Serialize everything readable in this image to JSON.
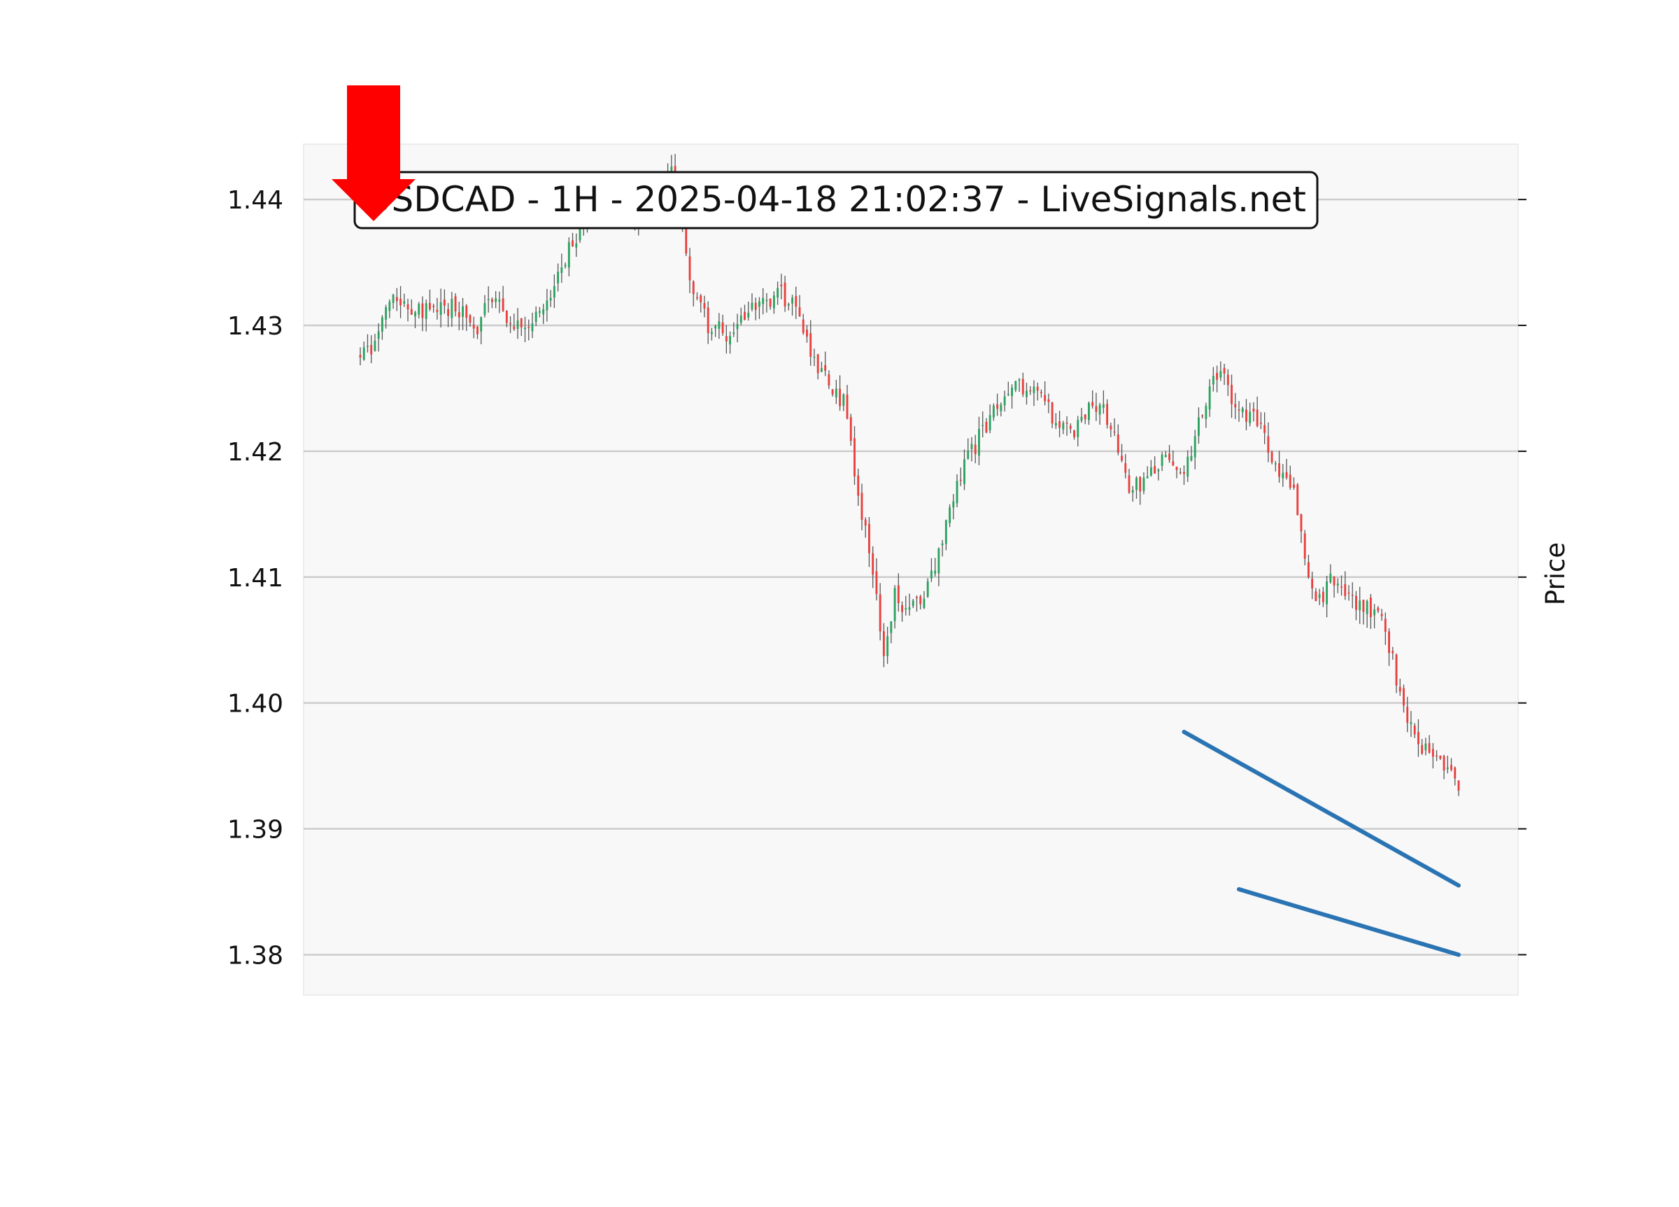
{
  "chart_data": {
    "type": "candlestick",
    "title": "USDCAD - 1H - 2025-04-18 21:02:37 - LiveSignals.net",
    "ylabel": "Price",
    "xlabel": "",
    "ylim": [
      1.3768,
      1.4444
    ],
    "yticks": [
      1.38,
      1.39,
      1.4,
      1.41,
      1.42,
      1.43,
      1.44
    ],
    "ytick_labels": [
      "1.38",
      "1.39",
      "1.40",
      "1.41",
      "1.42",
      "1.43",
      "1.44"
    ],
    "grid": true,
    "x_range": [
      0,
      300
    ],
    "colors": {
      "up": "#2ca25f",
      "down": "#e8403d",
      "wick": "#555555",
      "trendline": "#2b74b4",
      "arrow": "#ff0000",
      "grid": "#cccccc",
      "plot_bg": "#f8f8f8"
    },
    "anchors": [
      [
        0,
        1.4277
      ],
      [
        5,
        1.429
      ],
      [
        8,
        1.4318
      ],
      [
        15,
        1.431
      ],
      [
        25,
        1.4315
      ],
      [
        32,
        1.43
      ],
      [
        35,
        1.4328
      ],
      [
        40,
        1.4305
      ],
      [
        45,
        1.43
      ],
      [
        52,
        1.432
      ],
      [
        58,
        1.4368
      ],
      [
        64,
        1.4395
      ],
      [
        70,
        1.44
      ],
      [
        75,
        1.4388
      ],
      [
        80,
        1.439
      ],
      [
        85,
        1.442
      ],
      [
        88,
        1.4385
      ],
      [
        90,
        1.4335
      ],
      [
        95,
        1.43
      ],
      [
        100,
        1.4295
      ],
      [
        105,
        1.4305
      ],
      [
        110,
        1.432
      ],
      [
        115,
        1.4325
      ],
      [
        120,
        1.431
      ],
      [
        124,
        1.427
      ],
      [
        128,
        1.4255
      ],
      [
        132,
        1.424
      ],
      [
        136,
        1.417
      ],
      [
        140,
        1.41
      ],
      [
        143,
        1.404
      ],
      [
        146,
        1.4085
      ],
      [
        150,
        1.407
      ],
      [
        155,
        1.409
      ],
      [
        160,
        1.414
      ],
      [
        165,
        1.419
      ],
      [
        170,
        1.4215
      ],
      [
        175,
        1.424
      ],
      [
        180,
        1.4255
      ],
      [
        185,
        1.4245
      ],
      [
        190,
        1.4225
      ],
      [
        195,
        1.4215
      ],
      [
        200,
        1.424
      ],
      [
        205,
        1.4225
      ],
      [
        210,
        1.4175
      ],
      [
        215,
        1.4175
      ],
      [
        220,
        1.42
      ],
      [
        225,
        1.418
      ],
      [
        230,
        1.423
      ],
      [
        233,
        1.426
      ],
      [
        236,
        1.4255
      ],
      [
        240,
        1.423
      ],
      [
        245,
        1.4225
      ],
      [
        250,
        1.419
      ],
      [
        255,
        1.4175
      ],
      [
        258,
        1.4115
      ],
      [
        262,
        1.408
      ],
      [
        266,
        1.41
      ],
      [
        270,
        1.408
      ],
      [
        275,
        1.4075
      ],
      [
        280,
        1.406
      ],
      [
        285,
        1.3995
      ],
      [
        290,
        1.396
      ],
      [
        295,
        1.396
      ],
      [
        300,
        1.393
      ]
    ],
    "candles_approx": 300,
    "trendlines": [
      {
        "from": [
          225,
          1.3977
        ],
        "to": [
          300,
          1.3855
        ]
      },
      {
        "from": [
          240,
          1.3852
        ],
        "to": [
          300,
          1.38
        ]
      }
    ],
    "annotation": "down-arrow"
  }
}
